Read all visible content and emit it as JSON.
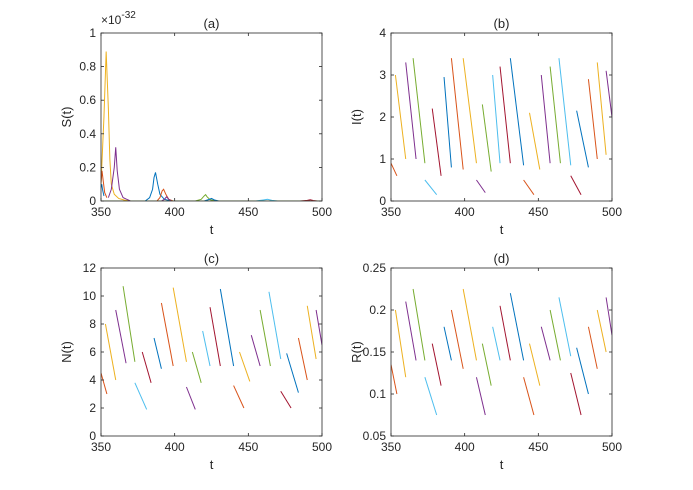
{
  "chart_data": [
    {
      "type": "line",
      "title": "(a)",
      "xlabel": "t",
      "ylabel": "S(t)",
      "xlim": [
        350,
        500
      ],
      "ylim": [
        0,
        1
      ],
      "xticks": [
        350,
        400,
        450,
        500
      ],
      "yticks": [
        0,
        0.2,
        0.4,
        0.6,
        0.8,
        1
      ],
      "ytick_labels": [
        "0",
        "0.2",
        "0.4",
        "0.6",
        "0.8",
        "1"
      ],
      "y_multiplier": "×10",
      "y_multiplier_exp": "-32",
      "grid": false,
      "series": [
        {
          "color": "#EDB120",
          "x": [
            350,
            352,
            353.5,
            355,
            356,
            357,
            359,
            362,
            366,
            370
          ],
          "y": [
            0.1,
            0.5,
            0.89,
            0.55,
            0.25,
            0.1,
            0.04,
            0.015,
            0.005,
            0
          ]
        },
        {
          "color": "#D95319",
          "x": [
            350,
            350.7,
            351.5,
            352.5,
            354
          ],
          "y": [
            0.11,
            0.18,
            0.12,
            0.05,
            0.02
          ]
        },
        {
          "color": "#0072BD",
          "x": [
            350,
            350.5,
            351,
            352
          ],
          "y": [
            0.08,
            0.1,
            0.07,
            0.03
          ]
        },
        {
          "color": "#7E2F8E",
          "x": [
            355,
            357,
            359,
            360,
            361,
            362.5,
            365,
            370
          ],
          "y": [
            0.02,
            0.07,
            0.2,
            0.32,
            0.18,
            0.07,
            0.02,
            0
          ]
        },
        {
          "color": "#0072BD",
          "x": [
            380,
            383,
            385,
            386,
            387,
            388.5,
            390,
            393,
            398
          ],
          "y": [
            0,
            0.02,
            0.07,
            0.14,
            0.17,
            0.1,
            0.04,
            0.01,
            0
          ]
        },
        {
          "color": "#D95319",
          "x": [
            388,
            390,
            391.5,
            392.5,
            394,
            396,
            399
          ],
          "y": [
            0,
            0.02,
            0.06,
            0.07,
            0.04,
            0.01,
            0
          ]
        },
        {
          "color": "#7E2F8E",
          "x": [
            391,
            393,
            394.5,
            396,
            398
          ],
          "y": [
            0,
            0.01,
            0.025,
            0.01,
            0
          ]
        },
        {
          "color": "#77AC30",
          "x": [
            414,
            418,
            420,
            421,
            422,
            424,
            428
          ],
          "y": [
            0,
            0.01,
            0.03,
            0.038,
            0.025,
            0.008,
            0
          ]
        },
        {
          "color": "#0072BD",
          "x": [
            420,
            423,
            425,
            427,
            430
          ],
          "y": [
            0,
            0.008,
            0.015,
            0.006,
            0
          ]
        },
        {
          "color": "#4DBEEE",
          "x": [
            455,
            460,
            463,
            466,
            470
          ],
          "y": [
            0,
            0.006,
            0.01,
            0.004,
            0
          ]
        },
        {
          "color": "#A2142F",
          "x": [
            485,
            490,
            492,
            494,
            497
          ],
          "y": [
            0,
            0.004,
            0.007,
            0.003,
            0
          ]
        },
        {
          "color": "#77AC30",
          "x": [
            350,
            380,
            440,
            500
          ],
          "y": [
            0,
            0,
            0,
            0
          ]
        }
      ]
    },
    {
      "type": "line",
      "title": "(b)",
      "xlabel": "t",
      "ylabel": "I(t)",
      "xlim": [
        350,
        500
      ],
      "ylim": [
        0,
        4
      ],
      "xticks": [
        350,
        400,
        450,
        500
      ],
      "yticks": [
        0,
        1,
        2,
        3,
        4
      ],
      "ytick_labels": [
        "0",
        "1",
        "2",
        "3",
        "4"
      ],
      "grid": false,
      "series": [
        {
          "color": "#D95319",
          "x": [
            350,
            354
          ],
          "y": [
            0.9,
            0.6
          ]
        },
        {
          "color": "#EDB120",
          "x": [
            353,
            360
          ],
          "y": [
            3.0,
            1.0
          ]
        },
        {
          "color": "#7E2F8E",
          "x": [
            360,
            367
          ],
          "y": [
            3.3,
            1.0
          ]
        },
        {
          "color": "#77AC30",
          "x": [
            365,
            373
          ],
          "y": [
            3.4,
            0.9
          ]
        },
        {
          "color": "#4DBEEE",
          "x": [
            373,
            381
          ],
          "y": [
            0.5,
            0.15
          ]
        },
        {
          "color": "#A2142F",
          "x": [
            378,
            384
          ],
          "y": [
            2.2,
            0.6
          ]
        },
        {
          "color": "#0072BD",
          "x": [
            386,
            391
          ],
          "y": [
            2.95,
            0.8
          ]
        },
        {
          "color": "#D95319",
          "x": [
            391,
            399
          ],
          "y": [
            3.4,
            0.75
          ]
        },
        {
          "color": "#EDB120",
          "x": [
            399,
            408
          ],
          "y": [
            3.4,
            0.9
          ]
        },
        {
          "color": "#7E2F8E",
          "x": [
            408,
            414
          ],
          "y": [
            0.5,
            0.2
          ]
        },
        {
          "color": "#77AC30",
          "x": [
            412,
            418
          ],
          "y": [
            2.3,
            0.7
          ]
        },
        {
          "color": "#4DBEEE",
          "x": [
            419,
            424
          ],
          "y": [
            3.0,
            0.9
          ]
        },
        {
          "color": "#A2142F",
          "x": [
            424,
            431
          ],
          "y": [
            3.2,
            0.9
          ]
        },
        {
          "color": "#0072BD",
          "x": [
            431,
            440
          ],
          "y": [
            3.4,
            0.85
          ]
        },
        {
          "color": "#D95319",
          "x": [
            440,
            447
          ],
          "y": [
            0.5,
            0.15
          ]
        },
        {
          "color": "#EDB120",
          "x": [
            444,
            451
          ],
          "y": [
            2.1,
            0.75
          ]
        },
        {
          "color": "#7E2F8E",
          "x": [
            452,
            458
          ],
          "y": [
            3.0,
            0.9
          ]
        },
        {
          "color": "#77AC30",
          "x": [
            458,
            465
          ],
          "y": [
            3.2,
            0.9
          ]
        },
        {
          "color": "#4DBEEE",
          "x": [
            464,
            472
          ],
          "y": [
            3.4,
            0.85
          ]
        },
        {
          "color": "#A2142F",
          "x": [
            472,
            479
          ],
          "y": [
            0.6,
            0.15
          ]
        },
        {
          "color": "#0072BD",
          "x": [
            476,
            484
          ],
          "y": [
            2.15,
            0.8
          ]
        },
        {
          "color": "#D95319",
          "x": [
            484,
            490
          ],
          "y": [
            2.9,
            1.0
          ]
        },
        {
          "color": "#EDB120",
          "x": [
            490,
            496
          ],
          "y": [
            3.3,
            1.1
          ]
        },
        {
          "color": "#7E2F8E",
          "x": [
            496,
            500
          ],
          "y": [
            3.1,
            2.0
          ]
        }
      ]
    },
    {
      "type": "line",
      "title": "(c)",
      "xlabel": "t",
      "ylabel": "N(t)",
      "xlim": [
        350,
        500
      ],
      "ylim": [
        0,
        12
      ],
      "xticks": [
        350,
        400,
        450,
        500
      ],
      "yticks": [
        0,
        2,
        4,
        6,
        8,
        10,
        12
      ],
      "ytick_labels": [
        "0",
        "2",
        "4",
        "6",
        "8",
        "10",
        "12"
      ],
      "grid": false,
      "series": [
        {
          "color": "#D95319",
          "x": [
            350,
            354
          ],
          "y": [
            4.5,
            3.0
          ]
        },
        {
          "color": "#EDB120",
          "x": [
            353,
            360
          ],
          "y": [
            8.0,
            4.0
          ]
        },
        {
          "color": "#7E2F8E",
          "x": [
            360,
            367
          ],
          "y": [
            9.0,
            5.2
          ]
        },
        {
          "color": "#77AC30",
          "x": [
            365,
            373
          ],
          "y": [
            10.7,
            5.3
          ]
        },
        {
          "color": "#4DBEEE",
          "x": [
            373,
            381
          ],
          "y": [
            3.8,
            1.9
          ]
        },
        {
          "color": "#A2142F",
          "x": [
            378,
            384
          ],
          "y": [
            6.0,
            3.8
          ]
        },
        {
          "color": "#0072BD",
          "x": [
            386,
            391
          ],
          "y": [
            7.0,
            4.8
          ]
        },
        {
          "color": "#D95319",
          "x": [
            391,
            399
          ],
          "y": [
            9.5,
            5.0
          ]
        },
        {
          "color": "#EDB120",
          "x": [
            399,
            408
          ],
          "y": [
            10.6,
            5.3
          ]
        },
        {
          "color": "#7E2F8E",
          "x": [
            408,
            414
          ],
          "y": [
            3.5,
            1.9
          ]
        },
        {
          "color": "#77AC30",
          "x": [
            412,
            418
          ],
          "y": [
            6.0,
            3.8
          ]
        },
        {
          "color": "#4DBEEE",
          "x": [
            419,
            424
          ],
          "y": [
            7.5,
            5.0
          ]
        },
        {
          "color": "#A2142F",
          "x": [
            424,
            431
          ],
          "y": [
            9.2,
            5.0
          ]
        },
        {
          "color": "#0072BD",
          "x": [
            431,
            440
          ],
          "y": [
            10.5,
            5.0
          ]
        },
        {
          "color": "#D95319",
          "x": [
            440,
            447
          ],
          "y": [
            3.6,
            2.0
          ]
        },
        {
          "color": "#EDB120",
          "x": [
            444,
            451
          ],
          "y": [
            6.0,
            3.9
          ]
        },
        {
          "color": "#7E2F8E",
          "x": [
            452,
            458
          ],
          "y": [
            7.2,
            5.0
          ]
        },
        {
          "color": "#77AC30",
          "x": [
            458,
            465
          ],
          "y": [
            9.0,
            5.0
          ]
        },
        {
          "color": "#4DBEEE",
          "x": [
            464,
            472
          ],
          "y": [
            10.3,
            5.5
          ]
        },
        {
          "color": "#A2142F",
          "x": [
            472,
            479
          ],
          "y": [
            3.2,
            2.0
          ]
        },
        {
          "color": "#0072BD",
          "x": [
            476,
            484
          ],
          "y": [
            5.9,
            3.1
          ]
        },
        {
          "color": "#D95319",
          "x": [
            484,
            490
          ],
          "y": [
            7.0,
            4.0
          ]
        },
        {
          "color": "#EDB120",
          "x": [
            490,
            496
          ],
          "y": [
            9.3,
            5.5
          ]
        },
        {
          "color": "#7E2F8E",
          "x": [
            496,
            500
          ],
          "y": [
            9.0,
            6.5
          ]
        }
      ]
    },
    {
      "type": "line",
      "title": "(d)",
      "xlabel": "t",
      "ylabel": "R(t)",
      "xlim": [
        350,
        500
      ],
      "ylim": [
        0.05,
        0.25
      ],
      "xticks": [
        350,
        400,
        450,
        500
      ],
      "yticks": [
        0.05,
        0.1,
        0.15,
        0.2,
        0.25
      ],
      "ytick_labels": [
        "0.05",
        "0.1",
        "0.15",
        "0.2",
        "0.25"
      ],
      "grid": false,
      "series": [
        {
          "color": "#D95319",
          "x": [
            350,
            354
          ],
          "y": [
            0.135,
            0.1
          ]
        },
        {
          "color": "#EDB120",
          "x": [
            353,
            360
          ],
          "y": [
            0.2,
            0.12
          ]
        },
        {
          "color": "#7E2F8E",
          "x": [
            360,
            367
          ],
          "y": [
            0.21,
            0.14
          ]
        },
        {
          "color": "#77AC30",
          "x": [
            365,
            373
          ],
          "y": [
            0.225,
            0.14
          ]
        },
        {
          "color": "#4DBEEE",
          "x": [
            373,
            381
          ],
          "y": [
            0.12,
            0.075
          ]
        },
        {
          "color": "#A2142F",
          "x": [
            378,
            384
          ],
          "y": [
            0.16,
            0.11
          ]
        },
        {
          "color": "#0072BD",
          "x": [
            386,
            391
          ],
          "y": [
            0.18,
            0.14
          ]
        },
        {
          "color": "#D95319",
          "x": [
            391,
            399
          ],
          "y": [
            0.2,
            0.13
          ]
        },
        {
          "color": "#EDB120",
          "x": [
            399,
            408
          ],
          "y": [
            0.225,
            0.14
          ]
        },
        {
          "color": "#7E2F8E",
          "x": [
            408,
            414
          ],
          "y": [
            0.12,
            0.075
          ]
        },
        {
          "color": "#77AC30",
          "x": [
            412,
            418
          ],
          "y": [
            0.16,
            0.11
          ]
        },
        {
          "color": "#4DBEEE",
          "x": [
            419,
            424
          ],
          "y": [
            0.18,
            0.14
          ]
        },
        {
          "color": "#A2142F",
          "x": [
            424,
            431
          ],
          "y": [
            0.205,
            0.14
          ]
        },
        {
          "color": "#0072BD",
          "x": [
            431,
            440
          ],
          "y": [
            0.22,
            0.14
          ]
        },
        {
          "color": "#D95319",
          "x": [
            440,
            447
          ],
          "y": [
            0.12,
            0.075
          ]
        },
        {
          "color": "#EDB120",
          "x": [
            444,
            451
          ],
          "y": [
            0.16,
            0.11
          ]
        },
        {
          "color": "#7E2F8E",
          "x": [
            452,
            458
          ],
          "y": [
            0.18,
            0.14
          ]
        },
        {
          "color": "#77AC30",
          "x": [
            458,
            465
          ],
          "y": [
            0.2,
            0.14
          ]
        },
        {
          "color": "#4DBEEE",
          "x": [
            464,
            472
          ],
          "y": [
            0.215,
            0.145
          ]
        },
        {
          "color": "#A2142F",
          "x": [
            472,
            479
          ],
          "y": [
            0.125,
            0.075
          ]
        },
        {
          "color": "#0072BD",
          "x": [
            476,
            484
          ],
          "y": [
            0.155,
            0.1
          ]
        },
        {
          "color": "#D95319",
          "x": [
            484,
            490
          ],
          "y": [
            0.18,
            0.13
          ]
        },
        {
          "color": "#EDB120",
          "x": [
            490,
            496
          ],
          "y": [
            0.2,
            0.15
          ]
        },
        {
          "color": "#7E2F8E",
          "x": [
            496,
            500
          ],
          "y": [
            0.215,
            0.17
          ]
        }
      ]
    }
  ]
}
